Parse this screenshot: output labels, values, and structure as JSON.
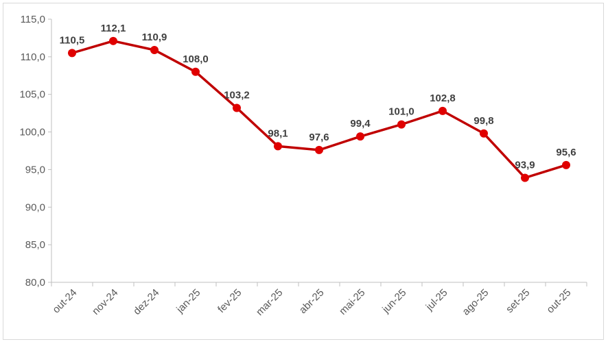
{
  "chart_data": {
    "type": "line",
    "title": "",
    "xlabel": "",
    "ylabel": "",
    "categories": [
      "out-24",
      "nov-24",
      "dez-24",
      "jan-25",
      "fev-25",
      "mar-25",
      "abr-25",
      "mai-25",
      "jun-25",
      "jul-25",
      "ago-25",
      "set-25",
      "out-25"
    ],
    "series": [
      {
        "values": [
          110.5,
          112.1,
          110.9,
          108.0,
          103.2,
          98.1,
          97.6,
          99.4,
          101.0,
          102.8,
          99.8,
          93.9,
          95.6
        ],
        "labels": [
          "110,5",
          "112,1",
          "110,9",
          "108,0",
          "103,2",
          "98,1",
          "97,6",
          "99,4",
          "101,0",
          "102,8",
          "99,8",
          "93,9",
          "95,6"
        ]
      }
    ],
    "ylim": [
      80,
      115
    ],
    "yticks": [
      80,
      85,
      90,
      95,
      100,
      105,
      110,
      115
    ],
    "ytick_labels": [
      "80,0",
      "85,0",
      "90,0",
      "95,0",
      "100,0",
      "105,0",
      "110,0",
      "115,0"
    ],
    "grid": false,
    "legend": "none",
    "colors": {
      "line": "#C00000",
      "marker": "#E00000",
      "axis": "#bfbfbf"
    }
  }
}
